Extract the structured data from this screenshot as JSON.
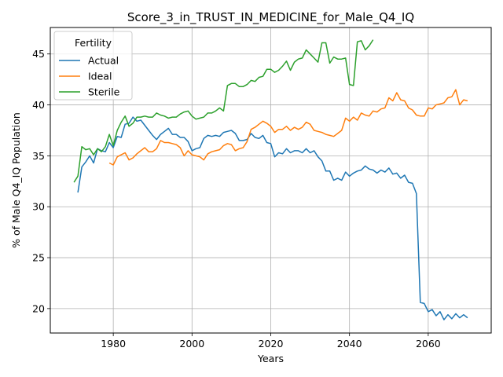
{
  "chart_data": {
    "type": "line",
    "title": "Score_3_in_TRUST_IN_MEDICINE_for_Male_Q4_IQ",
    "xlabel": "Years",
    "ylabel": "% of Male Q4_IQ Population",
    "xlim": [
      1964,
      2076
    ],
    "ylim": [
      17.6,
      47.6
    ],
    "xticks": [
      1980,
      2000,
      2020,
      2040,
      2060
    ],
    "yticks": [
      20,
      25,
      30,
      35,
      40,
      45
    ],
    "grid": true,
    "legend": {
      "title": "Fertility",
      "position": "top-left"
    },
    "series": [
      {
        "name": "Actual",
        "color": "#1f77b4",
        "x": [
          1971,
          1972,
          1973,
          1974,
          1975,
          1976,
          1977,
          1978,
          1979,
          1980,
          1981,
          1982,
          1983,
          1984,
          1985,
          1986,
          1987,
          1988,
          1989,
          1990,
          1991,
          1992,
          1993,
          1994,
          1995,
          1996,
          1997,
          1998,
          1999,
          2000,
          2001,
          2002,
          2003,
          2004,
          2005,
          2006,
          2007,
          2008,
          2009,
          2010,
          2011,
          2012,
          2013,
          2014,
          2015,
          2016,
          2017,
          2018,
          2019,
          2020,
          2021,
          2022,
          2023,
          2024,
          2025,
          2026,
          2027,
          2028,
          2029,
          2030,
          2031,
          2032,
          2033,
          2034,
          2035,
          2036,
          2037,
          2038,
          2039,
          2040,
          2041,
          2042,
          2043,
          2044,
          2045,
          2046,
          2047,
          2048,
          2049,
          2050,
          2051,
          2052,
          2053,
          2054,
          2055,
          2056,
          2057,
          2058,
          2059,
          2060,
          2061,
          2062,
          2063,
          2064,
          2065,
          2066,
          2067,
          2068,
          2069,
          2070
        ],
        "y": [
          31.4,
          33.9,
          34.4,
          35.0,
          34.3,
          35.7,
          35.5,
          35.4,
          36.3,
          35.8,
          36.9,
          36.8,
          38.1,
          38.2,
          38.8,
          38.4,
          38.5,
          38.0,
          37.5,
          37.0,
          36.6,
          37.1,
          37.4,
          37.7,
          37.1,
          37.1,
          36.8,
          36.8,
          36.4,
          35.5,
          35.7,
          35.8,
          36.7,
          37.0,
          36.9,
          37.0,
          36.9,
          37.3,
          37.4,
          37.5,
          37.2,
          36.5,
          36.5,
          36.6,
          37.2,
          36.8,
          36.7,
          37.0,
          36.3,
          36.2,
          34.9,
          35.3,
          35.2,
          35.7,
          35.3,
          35.5,
          35.5,
          35.3,
          35.7,
          35.3,
          35.5,
          34.9,
          34.5,
          33.5,
          33.5,
          32.6,
          32.8,
          32.6,
          33.4,
          33.0,
          33.3,
          33.5,
          33.6,
          34.0,
          33.7,
          33.6,
          33.3,
          33.6,
          33.4,
          33.8,
          33.2,
          33.3,
          32.8,
          33.1,
          32.4,
          32.3,
          31.3,
          20.6,
          20.5,
          19.7,
          19.9,
          19.3,
          19.7,
          18.9,
          19.4,
          19.0,
          19.5,
          19.1,
          19.4,
          19.1
        ]
      },
      {
        "name": "Ideal",
        "color": "#ff7f0e",
        "x": [
          1979,
          1980,
          1981,
          1982,
          1983,
          1984,
          1985,
          1986,
          1987,
          1988,
          1989,
          1990,
          1991,
          1992,
          1993,
          1994,
          1995,
          1996,
          1997,
          1998,
          1999,
          2000,
          2001,
          2002,
          2003,
          2004,
          2005,
          2006,
          2007,
          2008,
          2009,
          2010,
          2011,
          2012,
          2013,
          2014,
          2015,
          2016,
          2017,
          2018,
          2019,
          2020,
          2021,
          2022,
          2023,
          2024,
          2025,
          2026,
          2027,
          2028,
          2029,
          2030,
          2031,
          2032,
          2033,
          2034,
          2035,
          2036,
          2037,
          2038,
          2039,
          2040,
          2041,
          2042,
          2043,
          2044,
          2045,
          2046,
          2047,
          2048,
          2049,
          2050,
          2051,
          2052,
          2053,
          2054,
          2055,
          2056,
          2057,
          2058,
          2059,
          2060,
          2061,
          2062,
          2063,
          2064,
          2065,
          2066,
          2067,
          2068,
          2069,
          2070
        ],
        "y": [
          34.3,
          34.1,
          34.9,
          35.1,
          35.3,
          34.6,
          34.8,
          35.2,
          35.5,
          35.8,
          35.4,
          35.4,
          35.7,
          36.5,
          36.3,
          36.3,
          36.2,
          36.1,
          35.8,
          35.0,
          35.5,
          35.1,
          35.0,
          34.9,
          34.6,
          35.2,
          35.4,
          35.5,
          35.6,
          36.0,
          36.2,
          36.1,
          35.5,
          35.7,
          35.8,
          36.4,
          37.6,
          37.8,
          38.1,
          38.4,
          38.2,
          37.9,
          37.3,
          37.6,
          37.6,
          37.9,
          37.5,
          37.8,
          37.6,
          37.8,
          38.3,
          38.1,
          37.5,
          37.4,
          37.3,
          37.1,
          37.0,
          36.9,
          37.2,
          37.5,
          38.7,
          38.4,
          38.8,
          38.5,
          39.2,
          39.0,
          38.9,
          39.4,
          39.3,
          39.6,
          39.7,
          40.7,
          40.4,
          41.2,
          40.5,
          40.4,
          39.7,
          39.5,
          39.0,
          38.9,
          38.9,
          39.7,
          39.6,
          40.0,
          40.1,
          40.2,
          40.7,
          40.8,
          41.5,
          40.0,
          40.5,
          40.4
        ]
      },
      {
        "name": "Sterile",
        "color": "#2ca02c",
        "x": [
          1970,
          1971,
          1972,
          1973,
          1974,
          1975,
          1976,
          1977,
          1978,
          1979,
          1980,
          1981,
          1982,
          1983,
          1984,
          1985,
          1986,
          1987,
          1988,
          1989,
          1990,
          1991,
          1992,
          1993,
          1994,
          1995,
          1996,
          1997,
          1998,
          1999,
          2000,
          2001,
          2002,
          2003,
          2004,
          2005,
          2006,
          2007,
          2008,
          2009,
          2010,
          2011,
          2012,
          2013,
          2014,
          2015,
          2016,
          2017,
          2018,
          2019,
          2020,
          2021,
          2022,
          2023,
          2024,
          2025,
          2026,
          2027,
          2028,
          2029,
          2030,
          2031,
          2032,
          2033,
          2034,
          2035,
          2036,
          2037,
          2038,
          2039,
          2040,
          2041,
          2042,
          2043,
          2044,
          2045,
          2046
        ],
        "y": [
          32.4,
          33.0,
          35.9,
          35.6,
          35.7,
          35.1,
          35.7,
          35.4,
          35.9,
          37.1,
          36.0,
          37.5,
          38.3,
          38.9,
          37.9,
          38.2,
          38.8,
          38.8,
          38.9,
          38.8,
          38.8,
          39.2,
          39.0,
          38.9,
          38.7,
          38.8,
          38.8,
          39.1,
          39.3,
          39.4,
          38.9,
          38.6,
          38.7,
          38.8,
          39.2,
          39.2,
          39.4,
          39.7,
          39.4,
          41.9,
          42.1,
          42.1,
          41.8,
          41.8,
          42.0,
          42.4,
          42.3,
          42.7,
          42.8,
          43.5,
          43.5,
          43.2,
          43.4,
          43.8,
          44.3,
          43.4,
          44.2,
          44.5,
          44.6,
          45.4,
          45.0,
          44.6,
          44.2,
          46.1,
          46.1,
          44.1,
          44.7,
          44.5,
          44.5,
          44.6,
          42.0,
          41.9,
          46.2,
          46.3,
          45.4,
          45.8,
          46.4
        ]
      }
    ]
  }
}
